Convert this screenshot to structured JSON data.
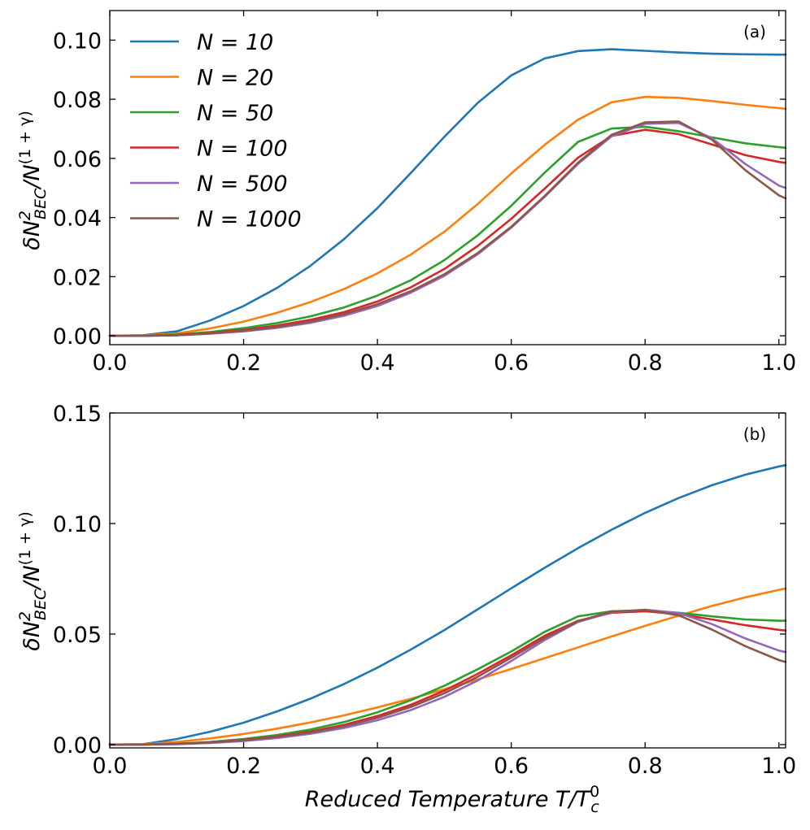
{
  "chart_data": [
    {
      "type": "line",
      "panel_label": "(a)",
      "xlabel": "",
      "ylabel": "δN²_{BEC}/N^{(1+γ)}",
      "xlim": [
        0.0,
        1.01
      ],
      "ylim": [
        -0.003,
        0.11
      ],
      "xticks": [
        0.0,
        0.2,
        0.4,
        0.6,
        0.8,
        1.0
      ],
      "xtick_labels": [
        "0.0",
        "0.2",
        "0.4",
        "0.6",
        "0.8",
        "1.0"
      ],
      "yticks": [
        0.0,
        0.02,
        0.04,
        0.06,
        0.08,
        0.1
      ],
      "ytick_labels": [
        "0.00",
        "0.02",
        "0.04",
        "0.06",
        "0.08",
        "0.10"
      ],
      "legend_position": "top-left",
      "x": [
        0.0,
        0.05,
        0.1,
        0.15,
        0.2,
        0.25,
        0.3,
        0.35,
        0.4,
        0.45,
        0.5,
        0.55,
        0.6,
        0.65,
        0.7,
        0.75,
        0.8,
        0.85,
        0.9,
        0.95,
        1.0,
        1.01
      ],
      "series": [
        {
          "name": "N = 10",
          "n_value": "10",
          "color": "#1f77b4",
          "values": [
            0.0,
            0.0002,
            0.0015,
            0.0052,
            0.0101,
            0.0162,
            0.0237,
            0.0327,
            0.0432,
            0.0551,
            0.0673,
            0.0788,
            0.0881,
            0.0938,
            0.0963,
            0.0969,
            0.0964,
            0.0958,
            0.0954,
            0.0952,
            0.0951,
            0.0951
          ]
        },
        {
          "name": "N = 20",
          "n_value": "20",
          "color": "#ff7f0e",
          "values": [
            0.0,
            0.0001,
            0.0008,
            0.0025,
            0.0048,
            0.0078,
            0.0114,
            0.0158,
            0.0211,
            0.0275,
            0.0352,
            0.0446,
            0.0549,
            0.0646,
            0.0731,
            0.079,
            0.0808,
            0.0805,
            0.0794,
            0.0781,
            0.077,
            0.0768
          ]
        },
        {
          "name": "N = 50",
          "n_value": "50",
          "color": "#2ca02c",
          "values": [
            0.0,
            0.0,
            0.0004,
            0.0013,
            0.0026,
            0.0043,
            0.0066,
            0.0096,
            0.0136,
            0.0188,
            0.0256,
            0.034,
            0.044,
            0.0552,
            0.0656,
            0.0701,
            0.0707,
            0.0692,
            0.0671,
            0.0651,
            0.0638,
            0.0636
          ]
        },
        {
          "name": "N = 100",
          "n_value": "100",
          "color": "#d62728",
          "values": [
            0.0,
            0.0,
            0.0003,
            0.001,
            0.002,
            0.0035,
            0.0054,
            0.008,
            0.0116,
            0.0164,
            0.0226,
            0.0304,
            0.0396,
            0.0498,
            0.0603,
            0.0676,
            0.0697,
            0.0682,
            0.0647,
            0.0611,
            0.0588,
            0.0585
          ]
        },
        {
          "name": "N = 500",
          "n_value": "500",
          "color": "#9467bd",
          "values": [
            0.0,
            0.0,
            0.0002,
            0.0007,
            0.0015,
            0.0027,
            0.0044,
            0.0068,
            0.0101,
            0.0146,
            0.0203,
            0.0276,
            0.0366,
            0.047,
            0.0582,
            0.0675,
            0.0717,
            0.072,
            0.0668,
            0.0581,
            0.0508,
            0.05
          ]
        },
        {
          "name": "N = 1000",
          "n_value": "1000",
          "color": "#8c564b",
          "values": [
            0.0,
            0.0,
            0.0002,
            0.0008,
            0.0017,
            0.003,
            0.0048,
            0.0073,
            0.0107,
            0.0151,
            0.0208,
            0.028,
            0.0369,
            0.0473,
            0.0586,
            0.068,
            0.0722,
            0.0725,
            0.0663,
            0.056,
            0.0475,
            0.0465
          ]
        }
      ]
    },
    {
      "type": "line",
      "panel_label": "(b)",
      "xlabel": "Reduced Temperature T/T⁰_c",
      "ylabel": "δN²_{BEC}/N^{(1+γ)}",
      "xlim": [
        0.0,
        1.01
      ],
      "ylim": [
        -0.0015,
        0.15
      ],
      "xticks": [
        0.0,
        0.2,
        0.4,
        0.6,
        0.8,
        1.0
      ],
      "xtick_labels": [
        "0.0",
        "0.2",
        "0.4",
        "0.6",
        "0.8",
        "1.0"
      ],
      "yticks": [
        0.0,
        0.05,
        0.1,
        0.15
      ],
      "ytick_labels": [
        "0.00",
        "0.05",
        "0.10",
        "0.15"
      ],
      "x": [
        0.0,
        0.05,
        0.1,
        0.15,
        0.2,
        0.25,
        0.3,
        0.35,
        0.4,
        0.45,
        0.5,
        0.55,
        0.6,
        0.65,
        0.7,
        0.75,
        0.8,
        0.85,
        0.9,
        0.95,
        1.0,
        1.01
      ],
      "series": [
        {
          "name": "N = 10",
          "color": "#1f77b4",
          "values": [
            0.0,
            0.0002,
            0.0025,
            0.0058,
            0.0099,
            0.015,
            0.0208,
            0.0274,
            0.0348,
            0.043,
            0.0518,
            0.0612,
            0.0707,
            0.08,
            0.0889,
            0.0972,
            0.1048,
            0.1115,
            0.1173,
            0.1221,
            0.1258,
            0.1264
          ]
        },
        {
          "name": "N = 20",
          "color": "#ff7f0e",
          "values": [
            0.0,
            0.0001,
            0.0012,
            0.0028,
            0.0048,
            0.0072,
            0.01,
            0.0132,
            0.0168,
            0.0207,
            0.025,
            0.0295,
            0.0342,
            0.0391,
            0.044,
            0.0489,
            0.0537,
            0.0583,
            0.0627,
            0.0666,
            0.07,
            0.0706
          ]
        },
        {
          "name": "N = 50",
          "color": "#2ca02c",
          "values": [
            0.0,
            0.0,
            0.0004,
            0.0012,
            0.0025,
            0.0043,
            0.0068,
            0.0102,
            0.0146,
            0.0201,
            0.0266,
            0.0341,
            0.0421,
            0.051,
            0.058,
            0.0603,
            0.0606,
            0.0596,
            0.058,
            0.0566,
            0.056,
            0.056
          ]
        },
        {
          "name": "N = 100",
          "color": "#d62728",
          "values": [
            0.0,
            0.0,
            0.0003,
            0.001,
            0.0021,
            0.0037,
            0.0059,
            0.0089,
            0.0129,
            0.018,
            0.0244,
            0.032,
            0.0404,
            0.0492,
            0.056,
            0.0596,
            0.0603,
            0.059,
            0.0566,
            0.054,
            0.0519,
            0.0516
          ]
        },
        {
          "name": "N = 500",
          "color": "#9467bd",
          "values": [
            0.0,
            0.0,
            0.0002,
            0.0007,
            0.0016,
            0.003,
            0.0049,
            0.0075,
            0.011,
            0.0156,
            0.0216,
            0.029,
            0.0378,
            0.0473,
            0.0555,
            0.0598,
            0.061,
            0.0595,
            0.0545,
            0.048,
            0.0425,
            0.0418
          ]
        },
        {
          "name": "N = 1000",
          "color": "#8c564b",
          "values": [
            0.0,
            0.0,
            0.0003,
            0.001,
            0.002,
            0.0035,
            0.0055,
            0.0083,
            0.0121,
            0.017,
            0.0232,
            0.0307,
            0.0393,
            0.0482,
            0.0558,
            0.0602,
            0.0609,
            0.0585,
            0.052,
            0.0445,
            0.0382,
            0.0374
          ]
        }
      ]
    }
  ]
}
